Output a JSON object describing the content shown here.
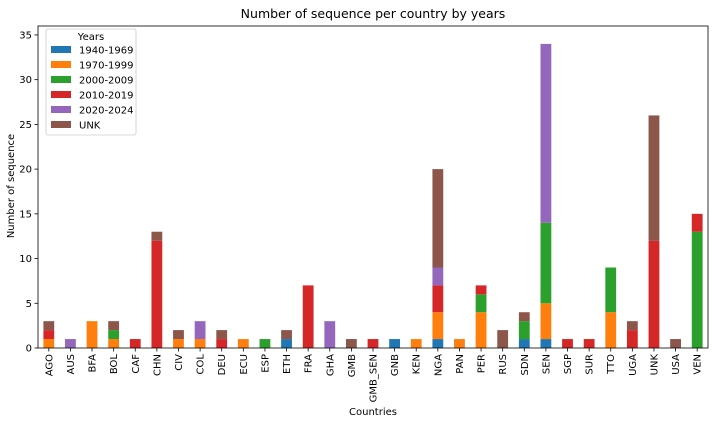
{
  "chart_data": {
    "type": "bar",
    "stacked": true,
    "title": "Number of sequence per country by years",
    "xlabel": "Countries",
    "ylabel": "Number of sequence",
    "ylim": [
      0,
      36
    ],
    "yticks": [
      0,
      5,
      10,
      15,
      20,
      25,
      30,
      35
    ],
    "grid": false,
    "legend": {
      "title": "Years",
      "placement": "top-left"
    },
    "categories": [
      "AGO",
      "AUS",
      "BFA",
      "BOL",
      "CAF",
      "CHN",
      "CIV",
      "COL",
      "DEU",
      "ECU",
      "ESP",
      "ETH",
      "FRA",
      "GHA",
      "GMB",
      "GMB_SEN",
      "GNB",
      "KEN",
      "NGA",
      "PAN",
      "PER",
      "RUS",
      "SDN",
      "SEN",
      "SGP",
      "SUR",
      "TTO",
      "UGA",
      "UNK",
      "USA",
      "VEN"
    ],
    "series": [
      {
        "name": "1940-1969",
        "color": "#1f77b4",
        "values": [
          0,
          0,
          0,
          0,
          0,
          0,
          0,
          0,
          0,
          0,
          0,
          1,
          0,
          0,
          0,
          0,
          1,
          0,
          1,
          0,
          0,
          0,
          1,
          1,
          0,
          0,
          0,
          0,
          0,
          0,
          0
        ]
      },
      {
        "name": "1970-1999",
        "color": "#ff7f0e",
        "values": [
          1,
          0,
          3,
          1,
          0,
          0,
          1,
          1,
          0,
          1,
          0,
          0,
          0,
          0,
          0,
          0,
          0,
          1,
          3,
          1,
          4,
          0,
          0,
          4,
          0,
          0,
          4,
          0,
          0,
          0,
          0
        ]
      },
      {
        "name": "2000-2009",
        "color": "#2ca02c",
        "values": [
          0,
          0,
          0,
          1,
          0,
          0,
          0,
          0,
          0,
          0,
          1,
          0,
          0,
          0,
          0,
          0,
          0,
          0,
          0,
          0,
          2,
          0,
          2,
          9,
          0,
          0,
          5,
          0,
          0,
          0,
          13
        ]
      },
      {
        "name": "2010-2019",
        "color": "#d62728",
        "values": [
          1,
          0,
          0,
          0,
          1,
          12,
          0,
          0,
          1,
          0,
          0,
          0,
          7,
          0,
          0,
          1,
          0,
          0,
          3,
          0,
          1,
          0,
          0,
          0,
          1,
          1,
          0,
          2,
          12,
          0,
          2
        ]
      },
      {
        "name": "2020-2024",
        "color": "#9467bd",
        "values": [
          0,
          1,
          0,
          0,
          0,
          0,
          0,
          2,
          0,
          0,
          0,
          0,
          0,
          3,
          0,
          0,
          0,
          0,
          2,
          0,
          0,
          0,
          0,
          20,
          0,
          0,
          0,
          0,
          0,
          0,
          0
        ]
      },
      {
        "name": "UNK",
        "color": "#8c564b",
        "values": [
          1,
          0,
          0,
          1,
          0,
          1,
          1,
          0,
          1,
          0,
          0,
          1,
          0,
          0,
          1,
          0,
          0,
          0,
          11,
          0,
          0,
          2,
          1,
          0,
          0,
          0,
          0,
          1,
          14,
          1,
          0
        ]
      }
    ]
  }
}
